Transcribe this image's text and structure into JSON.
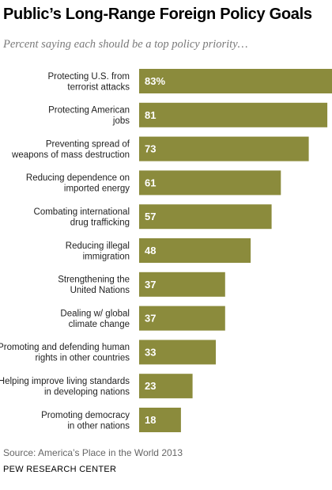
{
  "header": {
    "title": "Public’s Long-Range Foreign Policy Goals",
    "subtitle": "Percent saying each should be a top policy priority…"
  },
  "footer": {
    "source": "Source: America’s Place in the World 2013",
    "credit": "PEW RESEARCH CENTER"
  },
  "colors": {
    "bar": "#8b8b3c",
    "bar_label": "#ffffff",
    "category_label": "#222222"
  },
  "chart_data": {
    "type": "bar",
    "orientation": "horizontal",
    "categories": [
      [
        "Protecting U.S. from",
        "terrorist attacks"
      ],
      [
        "Protecting American",
        "jobs"
      ],
      [
        "Preventing spread of",
        "weapons of mass destruction"
      ],
      [
        "Reducing dependence on",
        "imported energy"
      ],
      [
        "Combating international",
        "drug trafficking"
      ],
      [
        "Reducing illegal",
        "immigration"
      ],
      [
        "Strengthening the",
        "United Nations"
      ],
      [
        "Dealing w/ global",
        "climate change"
      ],
      [
        "Promoting and defending human",
        "rights in other countries"
      ],
      [
        "Helping improve living standards",
        "in developing nations"
      ],
      [
        "Promoting democracy",
        "in other nations"
      ]
    ],
    "values": [
      83,
      81,
      73,
      61,
      57,
      48,
      37,
      37,
      33,
      23,
      18
    ],
    "value_labels": [
      "83%",
      "81",
      "73",
      "61",
      "57",
      "48",
      "37",
      "37",
      "33",
      "23",
      "18"
    ],
    "xlim": [
      0,
      83
    ],
    "grid": false,
    "legend": "none"
  }
}
